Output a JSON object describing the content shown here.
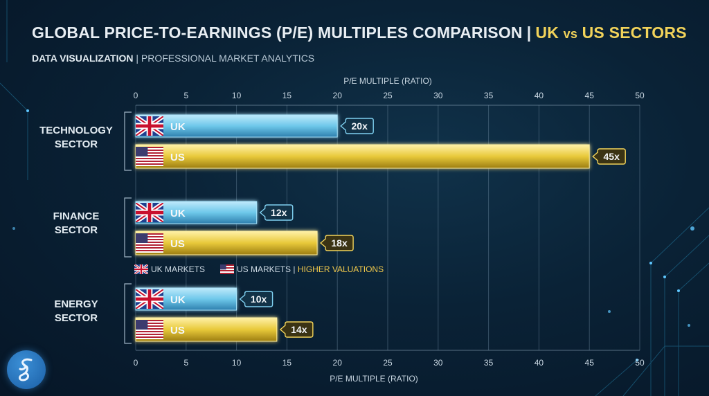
{
  "header": {
    "title_main": "GLOBAL PRICE-TO-EARNINGS (P/E) MULTIPLES COMPARISON",
    "title_sep": "|",
    "title_accent_a": "UK",
    "title_accent_vs": "vs",
    "title_accent_b": "US SECTORS",
    "subtitle_strong": "DATA VISUALIZATION",
    "subtitle_rest": "| PROFESSIONAL MARKET ANALYTICS"
  },
  "legend": {
    "uk_label": "UK MARKETS",
    "us_label": "US MARKETS |",
    "us_note": "HIGHER VALUATIONS"
  },
  "colors": {
    "uk_bar": "#6ec8ea",
    "us_bar": "#e8c93a",
    "uk_label_border": "#7fd0f0",
    "us_label_border": "#f2d35a"
  },
  "logo": {
    "icon": "script-f-logo-icon"
  },
  "chart_data": {
    "type": "bar",
    "orientation": "horizontal",
    "xlabel": "P/E MULTIPLE (RATIO)",
    "xlim": [
      0,
      50
    ],
    "xticks": [
      0,
      5,
      10,
      15,
      20,
      25,
      30,
      35,
      40,
      45,
      50
    ],
    "grid": true,
    "groups": [
      {
        "name": "TECHNOLOGY SECTOR",
        "lines": [
          "TECHNOLOGY",
          "SECTOR"
        ],
        "bars": [
          {
            "series": "UK",
            "value": 20,
            "label": "20x"
          },
          {
            "series": "US",
            "value": 45,
            "label": "45x"
          }
        ]
      },
      {
        "name": "FINANCE SECTOR",
        "lines": [
          "FINANCE",
          "SECTOR"
        ],
        "bars": [
          {
            "series": "UK",
            "value": 12,
            "label": "12x"
          },
          {
            "series": "US",
            "value": 18,
            "label": "18x"
          }
        ]
      },
      {
        "name": "ENERGY SECTOR",
        "lines": [
          "ENERGY",
          "SECTOR"
        ],
        "bars": [
          {
            "series": "UK",
            "value": 10,
            "label": "10x"
          },
          {
            "series": "US",
            "value": 14,
            "label": "14x"
          }
        ]
      }
    ]
  }
}
